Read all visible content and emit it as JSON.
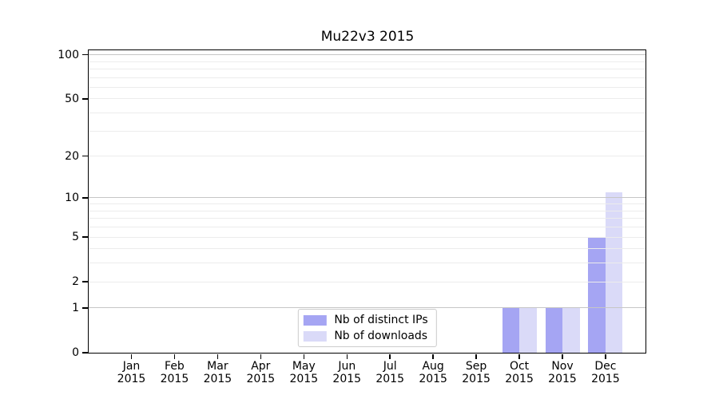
{
  "chart_data": {
    "type": "bar",
    "title": "Mu22v3 2015",
    "x_months": [
      "Jan",
      "Feb",
      "Mar",
      "Apr",
      "May",
      "Jun",
      "Jul",
      "Aug",
      "Sep",
      "Oct",
      "Nov",
      "Dec"
    ],
    "x_year": "2015",
    "series": [
      {
        "name": "Nb of distinct IPs",
        "color": "#a5a5f3",
        "values": [
          0,
          0,
          0,
          0,
          0,
          0,
          0,
          0,
          0,
          1,
          1,
          5
        ]
      },
      {
        "name": "Nb of downloads",
        "color": "#dadaf8",
        "values": [
          0,
          0,
          0,
          0,
          0,
          0,
          0,
          0,
          0,
          1,
          1,
          11
        ]
      }
    ],
    "y_scale": "log1p",
    "y_tick_values": [
      0,
      1,
      2,
      5,
      10,
      20,
      50,
      100
    ],
    "y_major_gridlines": [
      1,
      10,
      100
    ],
    "y_minor_gridlines": [
      2,
      3,
      4,
      5,
      6,
      7,
      8,
      9,
      20,
      30,
      40,
      50,
      60,
      70,
      80,
      90
    ],
    "ylim": [
      0,
      109
    ],
    "grid": true,
    "legend_position": "lower-center"
  },
  "colors": {
    "grid_major": "#c6c6c6",
    "grid_minor": "#ececec",
    "spine": "#000000",
    "text": "#000000"
  }
}
